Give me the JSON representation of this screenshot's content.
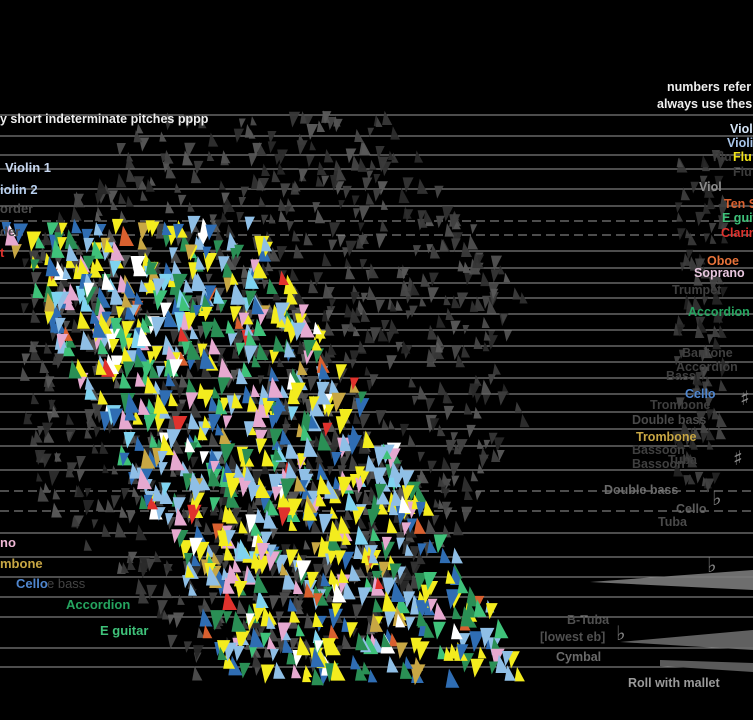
{
  "instruction_left": "y short indeterminate pitches pppp",
  "note_right_line1": "numbers refer",
  "note_right_line2": "always use thes",
  "left_labels": [
    {
      "text": "Violin 1",
      "color": "#c9d9f2"
    },
    {
      "text": "iolin 2",
      "color": "#b7cfee"
    },
    {
      "text": "order",
      "color": "#4a4a4a"
    },
    {
      "text": "der",
      "color": "#4a4a4a"
    },
    {
      "text": "t",
      "color": "#e0322d"
    },
    {
      "text": "no",
      "color": "#f0b8d6"
    },
    {
      "text": "mbone",
      "color": "#c8a744"
    },
    {
      "text": "Cello",
      "color": "#4f86cf"
    },
    {
      "text": "e bass",
      "color": "#444444"
    },
    {
      "text": "Accordion",
      "color": "#25a45f"
    },
    {
      "text": "E guitar",
      "color": "#3fc27a"
    }
  ],
  "right_labels": [
    {
      "text": "Violi",
      "color": "#d4e4f6"
    },
    {
      "text": "Violi",
      "color": "#a9c6ea"
    },
    {
      "text": "Flu",
      "color": "#3c3c3c"
    },
    {
      "text": "Flu",
      "color": "#f0e21a"
    },
    {
      "text": "Flu",
      "color": "#3c3c3c"
    },
    {
      "text": "Viol",
      "color": "#8d8d8d"
    },
    {
      "text": "Ten S",
      "color": "#d9602f"
    },
    {
      "text": "E guit",
      "color": "#3fc27a"
    },
    {
      "text": "Clarin",
      "color": "#e0322d"
    },
    {
      "text": "Oboe",
      "color": "#e8733a"
    },
    {
      "text": "Soprano",
      "color": "#e8c6de"
    },
    {
      "text": "Trumpet",
      "color": "#3f3f3f"
    },
    {
      "text": "Accordion",
      "color": "#25a45f"
    },
    {
      "text": "Baritone",
      "color": "#3f3f3f"
    },
    {
      "text": "Accordion",
      "color": "#3f3f3f"
    },
    {
      "text": "Bass",
      "color": "#3f3f3f"
    },
    {
      "text": "Cello",
      "color": "#4f86cf"
    },
    {
      "text": "Trombone",
      "color": "#3f3f3f"
    },
    {
      "text": "Double bass",
      "color": "#4a4a4a"
    },
    {
      "text": "Trombone",
      "color": "#c8a744"
    },
    {
      "text": "Bassoon",
      "color": "#3f3f3f"
    },
    {
      "text": "Tuba",
      "color": "#3f3f3f"
    },
    {
      "text": "Bassoon",
      "color": "#3f3f3f"
    },
    {
      "text": "Double bass",
      "color": "#6a6a6a"
    },
    {
      "text": "Cello",
      "color": "#5a5a5a"
    },
    {
      "text": "Tuba",
      "color": "#4a4a4a"
    },
    {
      "text": "B-Tuba",
      "color": "#505050"
    },
    {
      "text": "[lowest eb]",
      "color": "#505050"
    },
    {
      "text": "Cymbal",
      "color": "#6a6a6a"
    },
    {
      "text": "Roll with mallet",
      "color": "#9a9a9a"
    }
  ],
  "palette": [
    "#f3ec1e",
    "#8fbfe6",
    "#2a8f55",
    "#2f6db3",
    "#e6a9d0",
    "#ffffff",
    "#7fd3f0",
    "#3fc27a",
    "#c8a744",
    "#e0322d",
    "#d9602f"
  ],
  "symbols": [
    "flat-icon",
    "sharp-icon"
  ]
}
